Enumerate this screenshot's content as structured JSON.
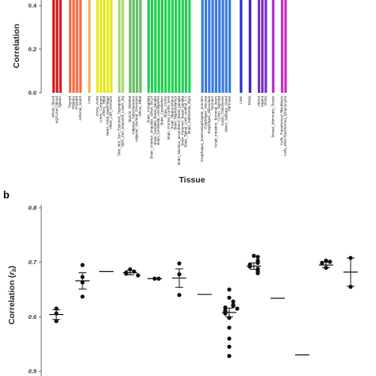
{
  "chart_data": [
    {
      "panel": "",
      "type": "bar",
      "ylabel": "Correlation",
      "xlabel": "Tissue",
      "ylim": [
        0,
        0.5
      ],
      "yticks": [
        "0.4",
        "0.2",
        "0.0"
      ],
      "tissues": [
        {
          "name": "Whole_Blood",
          "color": "#d7191c"
        },
        {
          "name": "eQTLGen_Blood",
          "color": "#d7191c"
        },
        {
          "name": "Spleen",
          "color": "#d7191c"
        },
        {
          "name": "Thyroid",
          "color": "#f46d43"
        },
        {
          "name": "Pituitary",
          "color": "#f46d43"
        },
        {
          "name": "Prostate",
          "color": "#f46d43"
        },
        {
          "name": "Adrenal_Gland",
          "color": "#f46d43"
        },
        {
          "name": "Lung",
          "color": "#fdae61"
        },
        {
          "name": "Artery_Aorta",
          "color": "#e6e619"
        },
        {
          "name": "Artery_Coronary",
          "color": "#e6e619"
        },
        {
          "name": "Artery_Tibial",
          "color": "#e6e619"
        },
        {
          "name": "Heart_Atrial_Appendage",
          "color": "#e6e619"
        },
        {
          "name": "Heart_Left_Ventricle",
          "color": "#e6e619"
        },
        {
          "name": "Skin_Not_Sun_Exposed_Suprapubic",
          "color": "#a6d96a"
        },
        {
          "name": "Skin_Sun_Exposed_Lower_leg",
          "color": "#a6d96a"
        },
        {
          "name": "Muscle_Skeletal",
          "color": "#66bd63"
        },
        {
          "name": "Adipose_Subcutaneous",
          "color": "#66bd63"
        },
        {
          "name": "Adipose_Visceral_Omentum",
          "color": "#66bd63"
        },
        {
          "name": "Nerve_Tibial",
          "color": "#66bd63"
        },
        {
          "name": "Brain_Amygdala",
          "color": "#1fd14f"
        },
        {
          "name": "Brain_Anterior_cingulate_cortex_BA24",
          "color": "#1fd14f"
        },
        {
          "name": "Brain_Caudate_basal_ganglia",
          "color": "#1fd14f"
        },
        {
          "name": "Brain_Cerebellar_Hemisphere",
          "color": "#1fd14f"
        },
        {
          "name": "Brain_Cerebellum",
          "color": "#1fd14f"
        },
        {
          "name": "Brain_Cortex",
          "color": "#1fd14f"
        },
        {
          "name": "Brain_Frontal_Cortex_BA9",
          "color": "#1fd14f"
        },
        {
          "name": "Brain_Hippocampus",
          "color": "#1fd14f"
        },
        {
          "name": "Brain_Hypothalamus",
          "color": "#1fd14f"
        },
        {
          "name": "Brain_Nucleus_accumbens_basal_ganglia",
          "color": "#1fd14f"
        },
        {
          "name": "Brain_Putamen_basal_ganglia",
          "color": "#1fd14f"
        },
        {
          "name": "Brain_Spinal_cord_cervical_c-1",
          "color": "#1fd14f"
        },
        {
          "name": "Brain_Substantia_nigra",
          "color": "#1fd14f"
        },
        {
          "name": "Esophagus_Gastroesophageal_Junction",
          "color": "#3a7be0"
        },
        {
          "name": "Esophagus_Mucosa",
          "color": "#3a7be0"
        },
        {
          "name": "Esophagus_Muscularis",
          "color": "#3a7be0"
        },
        {
          "name": "Stomach",
          "color": "#3a7be0"
        },
        {
          "name": "Small_Intestine_Terminal_Ileum",
          "color": "#3a7be0"
        },
        {
          "name": "Colon_Sigmoid",
          "color": "#3a7be0"
        },
        {
          "name": "Colon_Transverse",
          "color": "#3a7be0"
        },
        {
          "name": "Minor_Salivary_Gland",
          "color": "#3a7be0"
        },
        {
          "name": "Pancreas",
          "color": "#3a7be0"
        },
        {
          "name": "Liver",
          "color": "#2c2ccf"
        },
        {
          "name": "Testis",
          "color": "#3b1fc8"
        },
        {
          "name": "Uterus",
          "color": "#7b2fc8"
        },
        {
          "name": "Vagina",
          "color": "#7b2fc8"
        },
        {
          "name": "Ovary",
          "color": "#7b2fc8"
        },
        {
          "name": "Breast_Mammary_Tissue",
          "color": "#b42fc8"
        },
        {
          "name": "Cells_Transformed_fibroblasts",
          "color": "#c42fc0"
        },
        {
          "name": "Cells_EBV-transformed_lymphocytes",
          "color": "#c42fc0"
        }
      ]
    },
    {
      "panel": "b",
      "type": "scatter",
      "ylabel_main": "Correlation (",
      "ylabel_sym": "r",
      "ylabel_sub": "b",
      "ylabel_close": ")",
      "ylim": [
        0.5,
        0.8
      ],
      "yticks": [
        "0.8",
        "0.7",
        "0.6",
        "0.5"
      ],
      "groups": [
        {
          "mean": 0.604,
          "sem": 0.009,
          "points": [
            0.615,
            0.606,
            0.592
          ]
        },
        {
          "mean": 0.666,
          "sem": 0.015,
          "points": [
            0.695,
            0.673,
            0.663,
            0.637
          ]
        },
        {
          "mean": 0.683,
          "sem": 0.0,
          "points": []
        },
        {
          "mean": 0.681,
          "sem": 0.004,
          "points": [
            0.687,
            0.683,
            0.681,
            0.679,
            0.676
          ]
        },
        {
          "mean": 0.67,
          "sem": 0.0,
          "points": [
            0.67,
            0.67
          ]
        },
        {
          "mean": 0.671,
          "sem": 0.017,
          "points": [
            0.698,
            0.678,
            0.64
          ]
        },
        {
          "mean": 0.641,
          "sem": 0.0,
          "points": []
        },
        {
          "mean": 0.608,
          "sem": 0.008,
          "points": [
            0.65,
            0.635,
            0.628,
            0.622,
            0.62,
            0.617,
            0.615,
            0.612,
            0.609,
            0.606,
            0.598,
            0.58,
            0.56,
            0.545,
            0.528
          ]
        },
        {
          "mean": 0.693,
          "sem": 0.006,
          "points": [
            0.712,
            0.71,
            0.703,
            0.699,
            0.696,
            0.692,
            0.688,
            0.684,
            0.68
          ]
        },
        {
          "mean": 0.634,
          "sem": 0.0,
          "points": []
        },
        {
          "mean": 0.53,
          "sem": 0.0,
          "points": []
        },
        {
          "mean": 0.695,
          "sem": 0.005,
          "points": [
            0.703,
            0.701,
            0.699,
            0.69
          ]
        },
        {
          "mean": 0.682,
          "sem": 0.026,
          "points": [
            0.708,
            0.655
          ]
        }
      ]
    }
  ]
}
